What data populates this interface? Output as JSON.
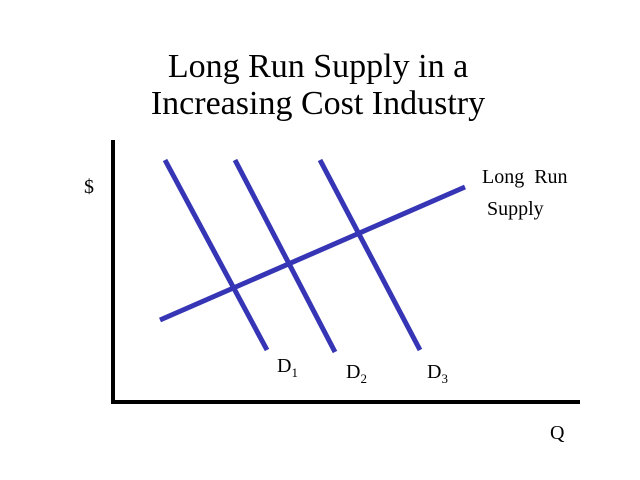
{
  "title": {
    "lines": [
      "Long Run Supply in a",
      "Increasing Cost Industry"
    ]
  },
  "axes": {
    "y_label": "$",
    "x_label": "Q"
  },
  "supply_curve": {
    "label_lines": [
      "Long  Run",
      "Supply"
    ]
  },
  "demand_curves": [
    {
      "label": "D",
      "subscript": "1"
    },
    {
      "label": "D",
      "subscript": "2"
    },
    {
      "label": "D",
      "subscript": "3"
    }
  ]
}
